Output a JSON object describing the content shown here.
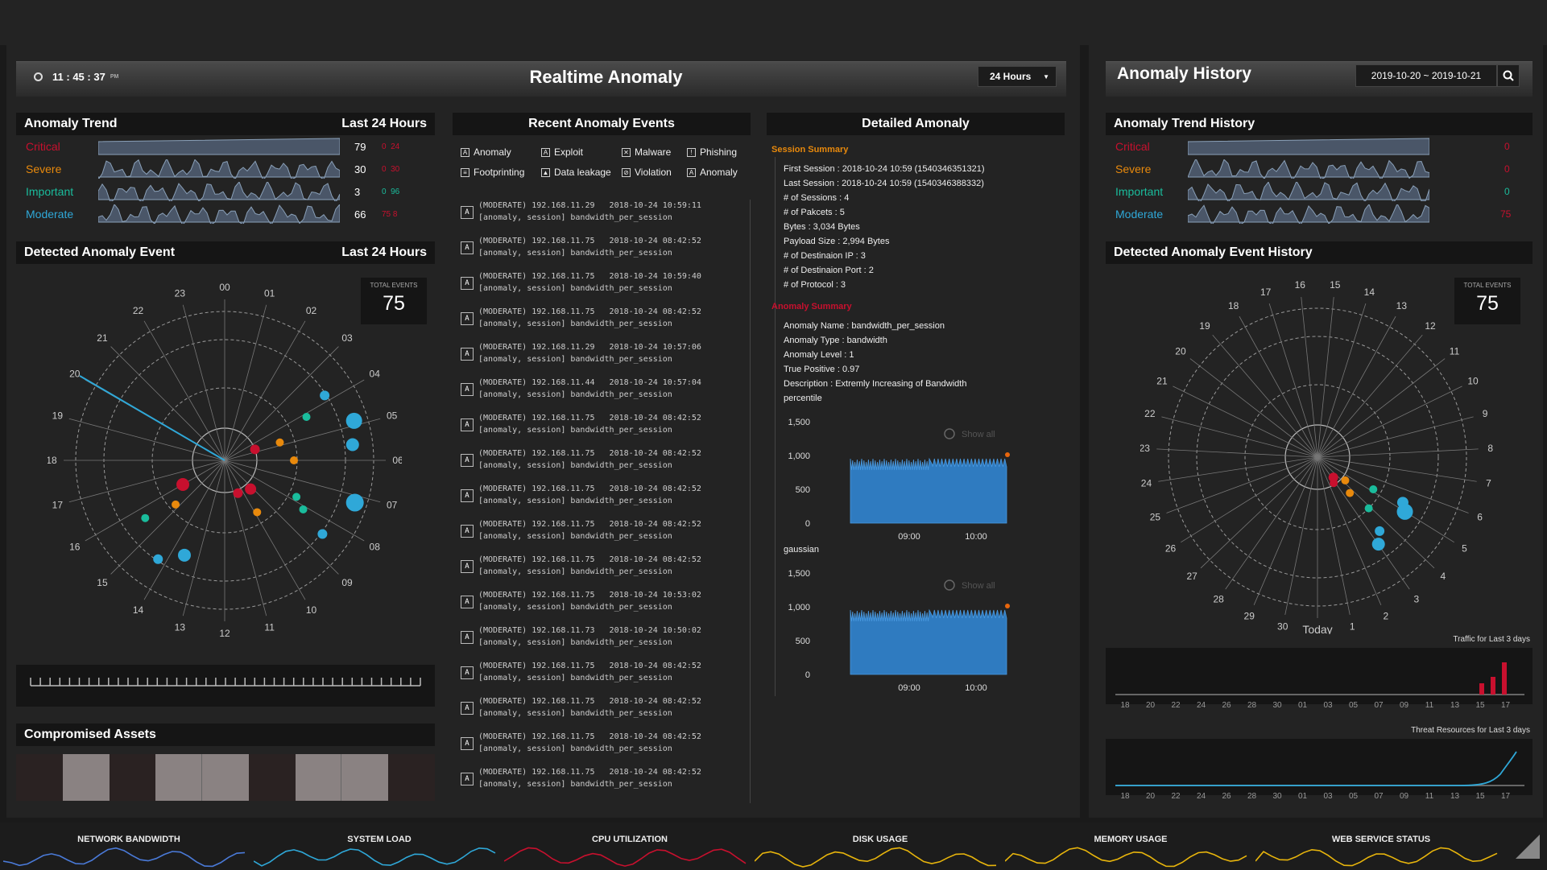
{
  "header": {
    "time_h": "11",
    "time_m": "45",
    "time_s": "37",
    "ampm": "PM",
    "title": "Realtime Anomaly",
    "range_select": "24 Hours",
    "history_title": "Anomaly History",
    "date_range": "2019-10-20 ~ 2019-10-21"
  },
  "trend": {
    "title": "Anomaly Trend",
    "period": "Last 24 Hours",
    "rows": [
      {
        "label": "Critical",
        "value": "79",
        "d1": "0",
        "d2": "24",
        "color": "#c8102e"
      },
      {
        "label": "Severe",
        "value": "30",
        "d1": "0",
        "d2": "30",
        "color": "#e8890c"
      },
      {
        "label": "Important",
        "value": "3",
        "d1": "0",
        "d2": "96",
        "color": "#1abc9c"
      },
      {
        "label": "Moderate",
        "value": "66",
        "d1": "75",
        "d2": "8",
        "color": "#2fa8d8"
      }
    ]
  },
  "detected": {
    "title": "Detected Anomaly Event",
    "period": "Last 24 Hours",
    "total_label": "TOTAL EVENTS",
    "total": "75",
    "hours": [
      "00",
      "01",
      "02",
      "03",
      "04",
      "05",
      "06",
      "07",
      "08",
      "09",
      "10",
      "11",
      "12",
      "13",
      "14",
      "15",
      "16",
      "17",
      "18",
      "19",
      "20",
      "21",
      "22",
      "23"
    ]
  },
  "compromised": {
    "title": "Compromised Assets"
  },
  "recent": {
    "title": "Recent Anomaly Events",
    "categories": [
      "Anomaly",
      "Exploit",
      "Malware",
      "Phishing",
      "Footprinting",
      "Data leakage",
      "Violation",
      "Anomaly"
    ],
    "events": [
      {
        "l1": "(MODERATE) 192.168.11.29          2018-10-24 10:59:11",
        "l2": "[anomaly, session] bandwidth_per_session"
      },
      {
        "l1": "(MODERATE) 192.168.11.75          2018-10-24 08:42:52",
        "l2": "[anomaly, session] bandwidth_per_session"
      },
      {
        "l1": "(MODERATE) 192.168.11.75          2018-10-24 10:59:40",
        "l2": "[anomaly, session] bandwidth_per_session"
      },
      {
        "l1": "(MODERATE) 192.168.11.75          2018-10-24 08:42:52",
        "l2": "[anomaly, session] bandwidth_per_session"
      },
      {
        "l1": "(MODERATE) 192.168.11.29          2018-10-24 10:57:06",
        "l2": "[anomaly, session] bandwidth_per_session"
      },
      {
        "l1": "(MODERATE) 192.168.11.44          2018-10-24 10:57:04",
        "l2": "[anomaly, session] bandwidth_per_session"
      },
      {
        "l1": "(MODERATE) 192.168.11.75          2018-10-24 08:42:52",
        "l2": "[anomaly, session] bandwidth_per_session"
      },
      {
        "l1": "(MODERATE) 192.168.11.75          2018-10-24 08:42:52",
        "l2": "[anomaly, session] bandwidth_per_session"
      },
      {
        "l1": "(MODERATE) 192.168.11.75          2018-10-24 08:42:52",
        "l2": "[anomaly, session] bandwidth_per_session"
      },
      {
        "l1": "(MODERATE) 192.168.11.75          2018-10-24 08:42:52",
        "l2": "[anomaly, session] bandwidth_per_session"
      },
      {
        "l1": "(MODERATE) 192.168.11.75          2018-10-24 08:42:52",
        "l2": "[anomaly, session] bandwidth_per_session"
      },
      {
        "l1": "(MODERATE) 192.168.11.75          2018-10-24 10:53:02",
        "l2": "[anomaly, session] bandwidth_per_session"
      },
      {
        "l1": "(MODERATE) 192.168.11.73          2018-10-24 10:50:02",
        "l2": "[anomaly, session] bandwidth_per_session"
      },
      {
        "l1": "(MODERATE) 192.168.11.75          2018-10-24 08:42:52",
        "l2": "[anomaly, session] bandwidth_per_session"
      },
      {
        "l1": "(MODERATE) 192.168.11.75          2018-10-24 08:42:52",
        "l2": "[anomaly, session] bandwidth_per_session"
      },
      {
        "l1": "(MODERATE) 192.168.11.75          2018-10-24 08:42:52",
        "l2": "[anomaly, session] bandwidth_per_session"
      },
      {
        "l1": "(MODERATE) 192.168.11.75          2018-10-24 08:42:52",
        "l2": "[anomaly, session] bandwidth_per_session"
      }
    ]
  },
  "detail": {
    "title": "Detailed Amonaly",
    "session_title": "Session Summary",
    "session": [
      "First Session : 2018-10-24 10:59 (1540346351321)",
      "Last Session : 2018-10-24 10:59 (1540346388332)",
      "# of Sessions : 4",
      "# of Pakcets : 5",
      "Bytes : 3,034 Bytes",
      "Payload Size : 2,994 Bytes",
      "# of Destinaion IP : 3",
      "# of Destinaion Port : 2",
      "# of Protocol : 3"
    ],
    "anomaly_title": "Anomaly Summary",
    "anomaly": [
      "Anomaly Name : bandwidth_per_session",
      "Anomaly Type : bandwidth",
      "Anomaly Level : 1",
      "True Positive : 0.97",
      "Description : Extremly Increasing of Bandwidth",
      "percentile"
    ],
    "chart_yticks": [
      "1,500",
      "1,000",
      "500",
      "0"
    ],
    "chart_xticks": [
      "09:00",
      "10:00"
    ],
    "show_all": "Show all",
    "gaussian": "gaussian"
  },
  "history": {
    "trend_title": "Anomaly Trend History",
    "rows": [
      {
        "label": "Critical",
        "value": "0",
        "color": "#c8102e"
      },
      {
        "label": "Severe",
        "value": "0",
        "color": "#e8890c"
      },
      {
        "label": "Important",
        "value": "0",
        "color": "#1abc9c"
      },
      {
        "label": "Moderate",
        "value": "75",
        "color": "#2fa8d8"
      }
    ],
    "event_title": "Detected Anomaly Event History",
    "total_label": "TOTAL EVENTS",
    "total": "75",
    "days": [
      "Today",
      "1",
      "2",
      "3",
      "4",
      "5",
      "6",
      "7",
      "8",
      "9",
      "10",
      "11",
      "12",
      "13",
      "14",
      "15",
      "16",
      "17",
      "18",
      "19",
      "20",
      "21",
      "22",
      "23",
      "24",
      "25",
      "26",
      "27",
      "28",
      "29",
      "30"
    ],
    "traffic_title": "Traffic for Last 3 days",
    "threat_title": "Threat Resources for Last 3 days",
    "xticks": [
      "18",
      "20",
      "22",
      "24",
      "26",
      "28",
      "30",
      "01",
      "03",
      "05",
      "07",
      "09",
      "11",
      "13",
      "15",
      "17"
    ]
  },
  "bottom": [
    "NETWORK BANDWIDTH",
    "SYSTEM LOAD",
    "CPU UTILIZATION",
    "DISK USAGE",
    "MEMORY USAGE",
    "WEB SERVICE STATUS"
  ],
  "colors": {
    "critical": "#c8102e",
    "severe": "#e8890c",
    "important": "#1abc9c",
    "moderate": "#2fa8d8"
  }
}
